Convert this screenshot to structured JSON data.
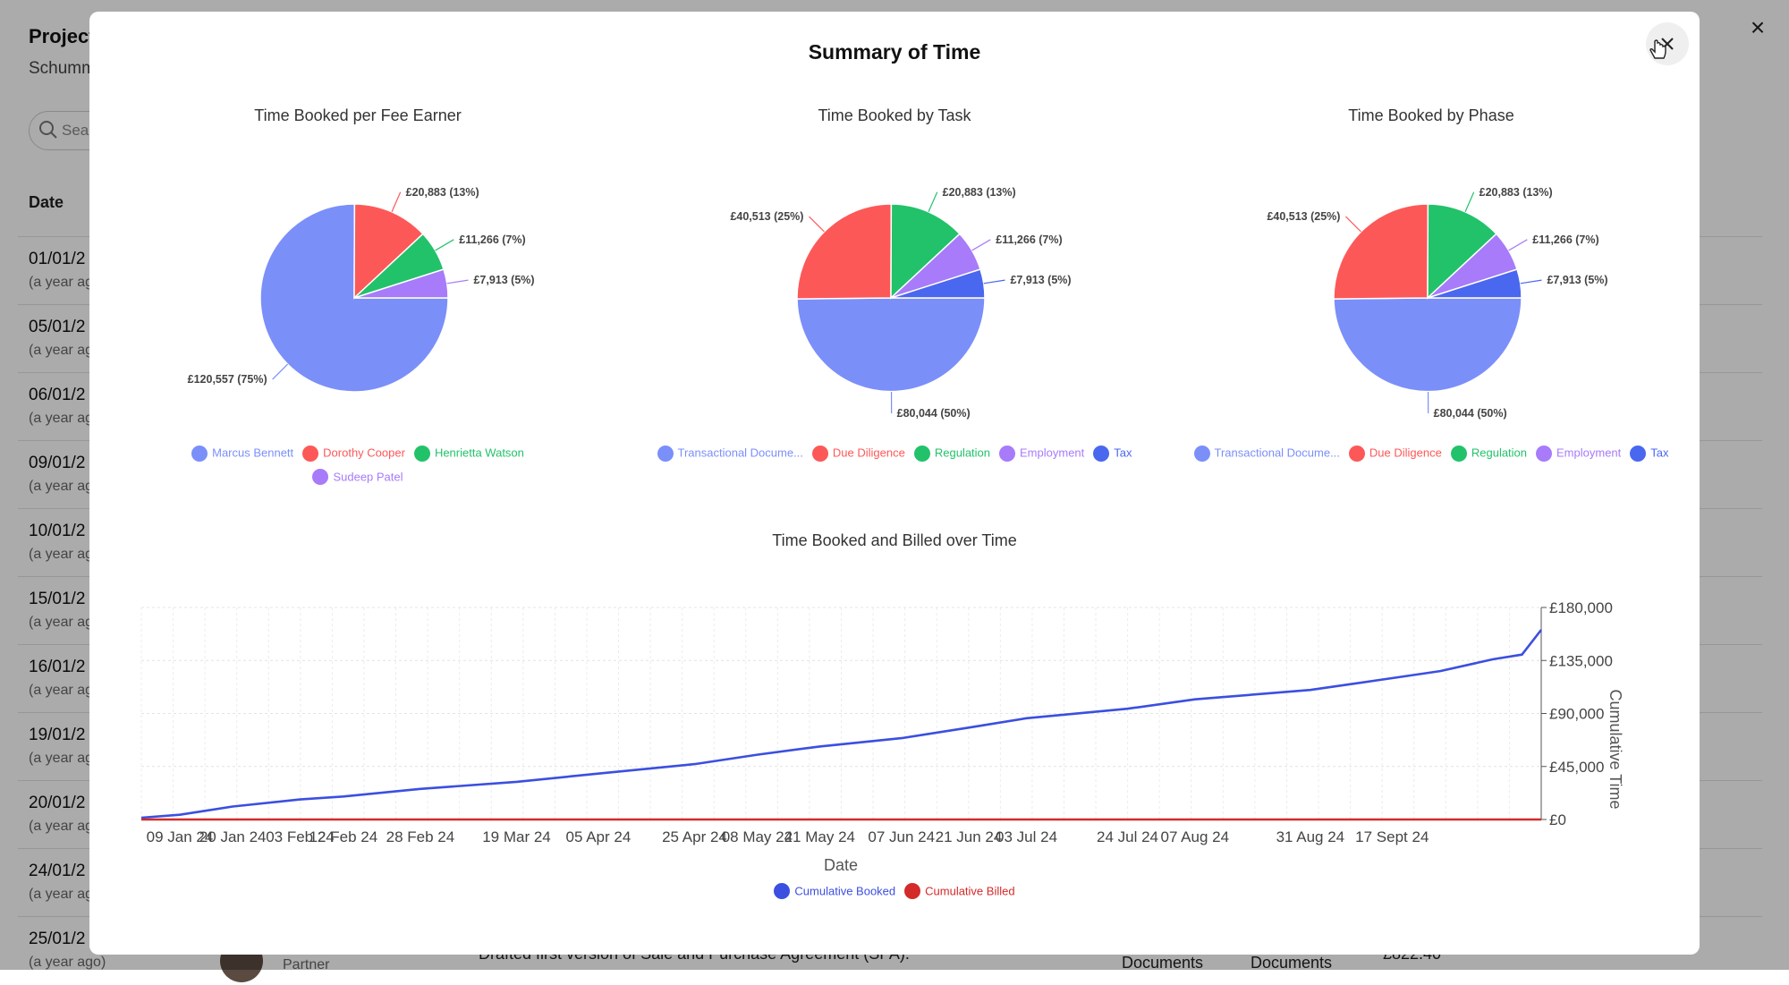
{
  "background": {
    "title": "Project",
    "subtitle": "Schumm",
    "search_placeholder": "Sear",
    "table_header_date": "Date",
    "rows": [
      {
        "date": "01/01/2",
        "ago": "(a year ag"
      },
      {
        "date": "05/01/2",
        "ago": "(a year ag"
      },
      {
        "date": "06/01/2",
        "ago": "(a year ag"
      },
      {
        "date": "09/01/2",
        "ago": "(a year ag"
      },
      {
        "date": "10/01/2",
        "ago": "(a year ag"
      },
      {
        "date": "15/01/2",
        "ago": "(a year ag"
      },
      {
        "date": "16/01/2",
        "ago": "(a year ag"
      },
      {
        "date": "19/01/2",
        "ago": "(a year ag"
      },
      {
        "date": "20/01/2",
        "ago": "(a year ag"
      },
      {
        "date": "24/01/2",
        "ago": "(a year ag"
      },
      {
        "date": "25/01/2",
        "ago": "(a year ago)"
      }
    ],
    "bottom_role": "Partner",
    "bottom_description": "Drafted first version of Sale and Purchase Agreement (SPA).",
    "bottom_col1": "Documents",
    "bottom_col2": "Documents",
    "bottom_amount": "£822.40"
  },
  "modal": {
    "title": "Summary of Time",
    "close_label": "×"
  },
  "chart_data": [
    {
      "type": "pie",
      "title": "Time Booked per Fee Earner",
      "slices": [
        {
          "name": "Marcus Bennett",
          "value": 120557,
          "label": "£120,557 (75%)",
          "color": "#7b8ff9"
        },
        {
          "name": "Dorothy Cooper",
          "value": 20883,
          "label": "£20,883 (13%)",
          "color": "#fd5858"
        },
        {
          "name": "Henrietta Watson",
          "value": 11266,
          "label": "£11,266 (7%)",
          "color": "#22c26a"
        },
        {
          "name": "Sudeep Patel",
          "value": 7913,
          "label": "£7,913 (5%)",
          "color": "#a77bf9"
        }
      ]
    },
    {
      "type": "pie",
      "title": "Time Booked by Task",
      "slices": [
        {
          "name": "Transactional Docume...",
          "value": 80044,
          "label": "£80,044 (50%)",
          "color": "#7b8ff9"
        },
        {
          "name": "Due Diligence",
          "value": 40513,
          "label": "£40,513 (25%)",
          "color": "#fd5858"
        },
        {
          "name": "Regulation",
          "value": 20883,
          "label": "£20,883 (13%)",
          "color": "#22c26a"
        },
        {
          "name": "Employment",
          "value": 11266,
          "label": "£11,266 (7%)",
          "color": "#a77bf9"
        },
        {
          "name": "Tax",
          "value": 7913,
          "label": "£7,913 (5%)",
          "color": "#4a67ef"
        }
      ]
    },
    {
      "type": "pie",
      "title": "Time Booked by Phase",
      "slices": [
        {
          "name": "Transactional Docume...",
          "value": 80044,
          "label": "£80,044 (50%)",
          "color": "#7b8ff9"
        },
        {
          "name": "Due Diligence",
          "value": 40513,
          "label": "£40,513 (25%)",
          "color": "#fd5858"
        },
        {
          "name": "Regulation",
          "value": 20883,
          "label": "£20,883 (13%)",
          "color": "#22c26a"
        },
        {
          "name": "Employment",
          "value": 11266,
          "label": "£11,266 (7%)",
          "color": "#a77bf9"
        },
        {
          "name": "Tax",
          "value": 7913,
          "label": "£7,913 (5%)",
          "color": "#4a67ef"
        }
      ]
    },
    {
      "type": "line",
      "title": "Time Booked and Billed over Time",
      "xlabel": "Date",
      "ylabel": "Cumulative Time",
      "ylim": [
        0,
        180000
      ],
      "yticks": [
        0,
        45000,
        90000,
        135000,
        180000
      ],
      "ytick_labels": [
        "£0",
        "£45,000",
        "£90,000",
        "£135,000",
        "£180,000"
      ],
      "x_ticks": [
        "2024-01-09",
        "2024-01-20",
        "2024-02-03",
        "2024-02-12",
        "2024-02-28",
        "2024-03-19",
        "2024-04-05",
        "2024-04-25",
        "2024-05-08",
        "2024-05-21",
        "2024-06-07",
        "2024-06-21",
        "2024-07-03",
        "2024-07-24",
        "2024-08-07",
        "2024-08-31",
        "2024-09-17"
      ],
      "x_tick_labels": [
        "09 Jan 24",
        "20 Jan 24",
        "03 Feb 24",
        "12 Feb 24",
        "28 Feb 24",
        "19 Mar 24",
        "05 Apr 24",
        "25 Apr 24",
        "08 May 24",
        "21 May 24",
        "07 Jun 24",
        "21 Jun 24",
        "03 Jul 24",
        "24 Jul 24",
        "07 Aug 24",
        "31 Aug 24",
        "17 Sept 24"
      ],
      "grid": true,
      "legend_position": "bottom",
      "series": [
        {
          "name": "Cumulative Booked",
          "color": "#3b4fe0",
          "points": [
            [
              "2024-01-01",
              1500
            ],
            [
              "2024-01-09",
              4000
            ],
            [
              "2024-01-20",
              11000
            ],
            [
              "2024-02-03",
              17000
            ],
            [
              "2024-02-12",
              19500
            ],
            [
              "2024-02-28",
              26000
            ],
            [
              "2024-03-19",
              32000
            ],
            [
              "2024-04-05",
              39000
            ],
            [
              "2024-04-25",
              47000
            ],
            [
              "2024-05-08",
              55000
            ],
            [
              "2024-05-21",
              62000
            ],
            [
              "2024-06-07",
              69000
            ],
            [
              "2024-06-21",
              78000
            ],
            [
              "2024-07-03",
              86000
            ],
            [
              "2024-07-24",
              94000
            ],
            [
              "2024-08-07",
              102000
            ],
            [
              "2024-08-31",
              110000
            ],
            [
              "2024-09-17",
              120000
            ],
            [
              "2024-09-27",
              126000
            ],
            [
              "2024-10-08",
              136000
            ],
            [
              "2024-10-14",
              140000
            ],
            [
              "2024-10-18",
              161000
            ]
          ]
        },
        {
          "name": "Cumulative Billed",
          "color": "#d42a2a",
          "points": [
            [
              "2024-01-01",
              0
            ],
            [
              "2024-10-18",
              0
            ]
          ]
        }
      ]
    }
  ]
}
